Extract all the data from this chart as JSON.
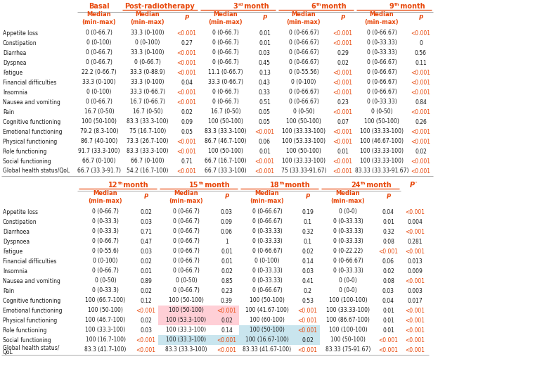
{
  "orange": "#E8470A",
  "rows_top": [
    "Appetite loss",
    "Constipation",
    "Diarrhea",
    "Dyspnea",
    "Fatigue",
    "Financial difficulties",
    "Insomnia",
    "Nausea and vomiting",
    "Pain",
    "Cognitive functioning",
    "Emotional functioning",
    "Physical functioning",
    "Role functioning",
    "Social functioning",
    "Global health status/QoL"
  ],
  "rows_bot": [
    "Appetite loss",
    "Constipation",
    "Diarrhoea",
    "Dyspnoea",
    "Fatigue",
    "Financial difficulties",
    "Insomnia",
    "Nausea and vomiting",
    "Pain",
    "Cognitive functioning",
    "Emotional functioning",
    "Physical functioning",
    "Role functioning",
    "Social functioning",
    "Global health status/\nQoL"
  ],
  "data_top": [
    [
      "0 (0-66.7)",
      "33.3 (0-100)",
      "<0.001",
      "0 (0-66.7)",
      "0.01",
      "0 (0-66.67)",
      "<0.001",
      "0 (0-66.67)",
      "<0.001"
    ],
    [
      "0 (0-100)",
      "0 (0-100)",
      "0.27",
      "0 (0-66.7)",
      "0.01",
      "0 (0-66.67)",
      "<0.001",
      "0 (0-33.33)",
      "0"
    ],
    [
      "0 (0-66.7)",
      "33.3 (0-100)",
      "<0.001",
      "0 (0-66.7)",
      "0.03",
      "0 (0-66.67)",
      "0.29",
      "0 (0-33.33)",
      "0.56"
    ],
    [
      "0 (0-66.7)",
      "0 (0-66.7)",
      "<0.001",
      "0 (0-66.7)",
      "0.45",
      "0 (0-66.67)",
      "0.02",
      "0 (0-66.67)",
      "0.11"
    ],
    [
      "22.2 (0-66.7)",
      "33.3 (0-88.9)",
      "<0.001",
      "11.1 (0-66.7)",
      "0.13",
      "0 (0-55.56)",
      "<0.001",
      "0 (0-66.67)",
      "<0.001"
    ],
    [
      "33.3 (0-100)",
      "33.3 (0-100)",
      "0.04",
      "33.3 (0-66.7)",
      "0.43",
      "0 (0-100)",
      "<0.001",
      "0 (0-66.67)",
      "<0.001"
    ],
    [
      "0 (0-100)",
      "33.3 (0-66.7)",
      "<0.001",
      "0 (0-66.7)",
      "0.33",
      "0 (0-66.67)",
      "<0.001",
      "0 (0-66.67)",
      "<0.001"
    ],
    [
      "0 (0-66.7)",
      "16.7 (0-66.7)",
      "<0.001",
      "0 (0-66.7)",
      "0.51",
      "0 (0-66.67)",
      "0.23",
      "0 (0-33.33)",
      "0.84"
    ],
    [
      "16.7 (0-50)",
      "16.7 (0-50)",
      "0.02",
      "16.7 (0-50)",
      "0.05",
      "0 (0-50)",
      "<0.001",
      "0 (0-50)",
      "<0.001"
    ],
    [
      "100 (50-100)",
      "83.3 (33.3-100)",
      "0.09",
      "100 (50-100)",
      "0.05",
      "100 (50-100)",
      "0.07",
      "100 (50-100)",
      "0.26"
    ],
    [
      "79.2 (8.3-100)",
      "75 (16.7-100)",
      "0.05",
      "83.3 (33.3-100)",
      "<0.001",
      "100 (33.33-100)",
      "<0.001",
      "100 (33.33-100)",
      "<0.001"
    ],
    [
      "86.7 (40-100)",
      "73.3 (26.7-100)",
      "<0.001",
      "86.7 (46.7-100)",
      "0.06",
      "100 (53.33-100)",
      "<0.001",
      "100 (46.67-100)",
      "<0.001"
    ],
    [
      "91.7 (33.3-100)",
      "83.3 (33.3-100)",
      "<0.001",
      "100 (50-100)",
      "0.01",
      "100 (50-100)",
      "0.01",
      "100 (33.33-100)",
      "0.02"
    ],
    [
      "66.7 (0-100)",
      "66.7 (0-100)",
      "0.71",
      "66.7 (16.7-100)",
      "<0.001",
      "100 (33.33-100)",
      "<0.001",
      "100 (33.33-100)",
      "<0.001"
    ],
    [
      "66.7 (33.3-91.7)",
      "54.2 (16.7-100)",
      "<0.001",
      "66.7 (33.3-100)",
      "<0.001",
      "75 (33.33-91.67)",
      "<0.001",
      "83.33 (33.33-91.67)",
      "<0.001"
    ]
  ],
  "data_bot": [
    [
      "0 (0-66.7)",
      "0.02",
      "0 (0-66.7)",
      "0.03",
      "0 (0-66.67)",
      "0.19",
      "0 (0-0)",
      "0.04",
      "<0.001"
    ],
    [
      "0 (0-33.3)",
      "0.03",
      "0 (0-66.7)",
      "0.09",
      "0 (0-66.67)",
      "0.1",
      "0 (0-33.33)",
      "0.01",
      "0.004"
    ],
    [
      "0 (0-33.3)",
      "0.71",
      "0 (0-66.7)",
      "0.06",
      "0 (0-33.33)",
      "0.32",
      "0 (0-33.33)",
      "0.32",
      "<0.001"
    ],
    [
      "0 (0-66.7)",
      "0.47",
      "0 (0-66.7)",
      "1",
      "0 (0-33.33)",
      "0.1",
      "0 (0-33.33)",
      "0.08",
      "0.281"
    ],
    [
      "0 (0-55.6)",
      "0.03",
      "0 (0-66.7)",
      "0.01",
      "0 (0-66.67)",
      "0.02",
      "0 (0-22.22)",
      "<0.001",
      "<0.001"
    ],
    [
      "0 (0-100)",
      "0.02",
      "0 (0-66.7)",
      "0.01",
      "0 (0-100)",
      "0.14",
      "0 (0-66.67)",
      "0.06",
      "0.013"
    ],
    [
      "0 (0-66.7)",
      "0.01",
      "0 (0-66.7)",
      "0.02",
      "0 (0-33.33)",
      "0.03",
      "0 (0-33.33)",
      "0.02",
      "0.009"
    ],
    [
      "0 (0-50)",
      "0.89",
      "0 (0-50)",
      "0.85",
      "0 (0-33.33)",
      "0.41",
      "0 (0-0)",
      "0.08",
      "<0.001"
    ],
    [
      "0 (0-33.3)",
      "0.02",
      "0 (0-66.7)",
      "0.23",
      "0 (0-66.67)",
      "0.2",
      "0 (0-0)",
      "0.03",
      "0.003"
    ],
    [
      "100 (66.7-100)",
      "0.12",
      "100 (50-100)",
      "0.39",
      "100 (50-100)",
      "0.53",
      "100 (100-100)",
      "0.04",
      "0.017"
    ],
    [
      "100 (50-100)",
      "<0.001",
      "100 (50-100)",
      "<0.001",
      "100 (41.67-100)",
      "<0.001",
      "100 (33.33-100)",
      "0.01",
      "<0.001"
    ],
    [
      "100 (46.7-100)",
      "0.02",
      "100 (53.3-100)",
      "0.02",
      "100 (60-100)",
      "<0.001",
      "100 (86.67-100)",
      "0.01",
      "<0.001"
    ],
    [
      "100 (33.3-100)",
      "0.03",
      "100 (33.3-100)",
      "0.14",
      "100 (50-100)",
      "<0.001",
      "100 (100-100)",
      "0.01",
      "<0.001"
    ],
    [
      "100 (16.7-100)",
      "<0.001",
      "100 (33.3-100)",
      "<0.001",
      "100 (16.67-100)",
      "0.02",
      "100 (50-100)",
      "<0.001",
      "<0.001"
    ],
    [
      "83.3 (41.7-100)",
      "<0.001",
      "83.3 (33.3-100)",
      "<0.001",
      "83.33 (41.67-100)",
      "<0.001",
      "83.33 (75-91.67)",
      "<0.001",
      "<0.001"
    ]
  ]
}
